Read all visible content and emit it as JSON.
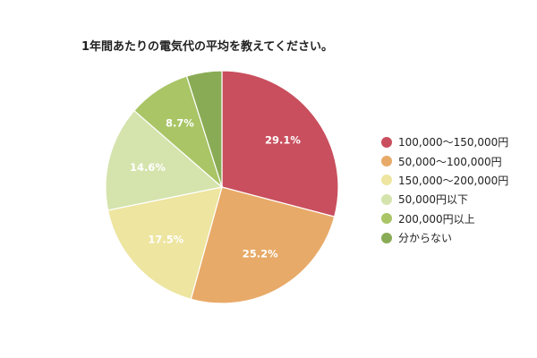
{
  "chart_data": {
    "type": "pie",
    "title": "1年間あたりの電気代の平均を教えてください。",
    "legend_position": "right",
    "slices": [
      {
        "name": "100,000〜150,000円",
        "value": 29.1,
        "label": "29.1%",
        "color": "#c94f5e"
      },
      {
        "name": "50,000〜100,000円",
        "value": 25.2,
        "label": "25.2%",
        "color": "#e8aa68"
      },
      {
        "name": "150,000〜200,000円",
        "value": 17.5,
        "label": "17.5%",
        "color": "#ede5a0"
      },
      {
        "name": "50,000円以下",
        "value": 14.6,
        "label": "14.6%",
        "color": "#d5e3ad"
      },
      {
        "name": "200,000円以上",
        "value": 8.7,
        "label": "8.7%",
        "color": "#a9c566"
      },
      {
        "name": "分からない",
        "value": 4.9,
        "label": "",
        "color": "#8aab55"
      }
    ]
  }
}
